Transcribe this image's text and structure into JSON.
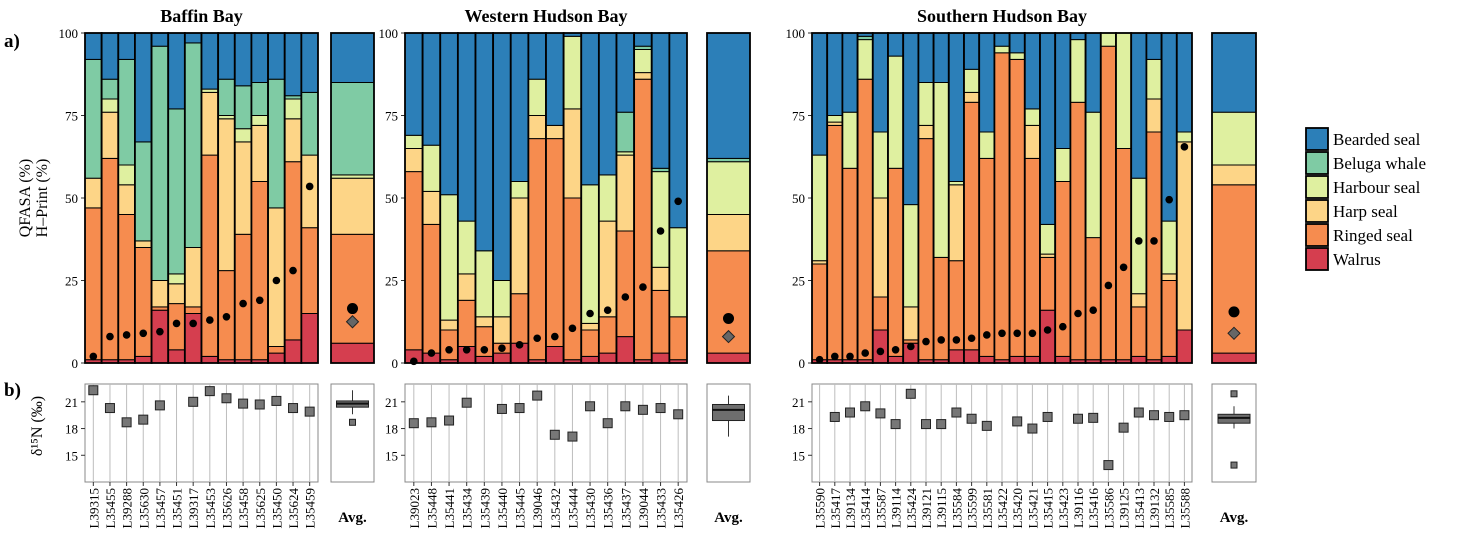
{
  "panel_labels": {
    "a": "a)",
    "b": "b)"
  },
  "y_label_a": {
    "line1": "QFASA (%)",
    "line2": "H–Print (%)"
  },
  "y_label_b": "δ¹⁵N (‰)",
  "avg_label": "Avg.",
  "colors": {
    "Bearded seal": "#2c7fb8",
    "Beluga whale": "#7fcba4",
    "Harbour seal": "#dff0a0",
    "Harp seal": "#fdd587",
    "Ringed seal": "#f68c4f",
    "Walrus": "#d53e4f",
    "dot": "#000000",
    "diamond": "#666666",
    "box": "#6e6e6e"
  },
  "legend": {
    "entries": [
      "Bearded seal",
      "Beluga whale",
      "Harbour seal",
      "Harp seal",
      "Ringed seal",
      "Walrus"
    ]
  },
  "chart_data": [
    {
      "type": "bar",
      "region": "Baffin Bay",
      "title": "Baffin Bay",
      "stacking": "stacked 100%",
      "ylim": [
        0,
        100
      ],
      "yticks": [
        0,
        25,
        50,
        75,
        100
      ],
      "stack_order_bottom_to_top": [
        "Walrus",
        "Ringed seal",
        "Harp seal",
        "Harbour seal",
        "Beluga whale",
        "Bearded seal"
      ],
      "categories": [
        "L39315",
        "L35455",
        "L39288",
        "L35630",
        "L35457",
        "L35451",
        "L39317",
        "L35453",
        "L35626",
        "L35458",
        "L35625",
        "L35450",
        "L35624",
        "L35459"
      ],
      "series": [
        {
          "name": "Walrus",
          "values": [
            1,
            1,
            1,
            2,
            16,
            4,
            15,
            2,
            1,
            1,
            1,
            3,
            7,
            15
          ]
        },
        {
          "name": "Ringed seal",
          "values": [
            46,
            61,
            44,
            33,
            1,
            14,
            2,
            61,
            27,
            38,
            54,
            2,
            54,
            26
          ]
        },
        {
          "name": "Harp seal",
          "values": [
            9,
            14,
            9,
            2,
            8,
            6,
            18,
            19,
            46,
            28,
            17,
            42,
            13,
            22
          ]
        },
        {
          "name": "Harbour seal",
          "values": [
            0,
            4,
            6,
            0,
            0,
            3,
            0,
            1,
            1,
            4,
            3,
            0,
            6,
            0
          ]
        },
        {
          "name": "Beluga whale",
          "values": [
            36,
            6,
            32,
            30,
            71,
            50,
            62,
            0,
            11,
            13,
            10,
            39,
            1,
            19
          ]
        },
        {
          "name": "Bearded seal",
          "values": [
            8,
            14,
            8,
            33,
            4,
            23,
            3,
            17,
            14,
            16,
            15,
            14,
            19,
            18
          ]
        }
      ],
      "hprint_points": {
        "name": "H-Print",
        "values": [
          2,
          8,
          8.5,
          9,
          9.5,
          12,
          12,
          13,
          14,
          18,
          19,
          25,
          28,
          53.5
        ]
      },
      "d15n": {
        "ylim": [
          12,
          23
        ],
        "yticks": [
          15,
          18,
          21
        ],
        "values": [
          22.3,
          20.3,
          18.7,
          19.0,
          20.6,
          null,
          21.0,
          22.2,
          21.4,
          20.8,
          20.7,
          21.1,
          20.3,
          19.9
        ]
      },
      "average": {
        "label": "Avg.",
        "stack": {
          "Walrus": 6,
          "Ringed seal": 33,
          "Harp seal": 17,
          "Harbour seal": 1,
          "Beluga whale": 28,
          "Bearded seal": 15
        },
        "hprint_mean": 16.5,
        "qfasa_mean": 12.5,
        "box": {
          "min": 19.6,
          "q1": 20.4,
          "median": 20.8,
          "q3": 21.1,
          "max": 22.3,
          "outliers": [
            18.7
          ]
        }
      }
    },
    {
      "type": "bar",
      "region": "Western Hudson Bay",
      "title": "Western Hudson Bay",
      "stacking": "stacked 100%",
      "ylim": [
        0,
        100
      ],
      "yticks": [
        0,
        25,
        50,
        75,
        100
      ],
      "stack_order_bottom_to_top": [
        "Walrus",
        "Ringed seal",
        "Harp seal",
        "Harbour seal",
        "Beluga whale",
        "Bearded seal"
      ],
      "categories": [
        "L39023",
        "L35448",
        "L35441",
        "L35434",
        "L35439",
        "L35440",
        "L35445",
        "L39046",
        "L35432",
        "L35444",
        "L35430",
        "L35436",
        "L35437",
        "L39044",
        "L35433",
        "L35426"
      ],
      "series": [
        {
          "name": "Walrus",
          "values": [
            4,
            3,
            1,
            5,
            2,
            3,
            6,
            1,
            5,
            1,
            2,
            3,
            8,
            1,
            3,
            1
          ]
        },
        {
          "name": "Ringed seal",
          "values": [
            54,
            39,
            9,
            14,
            9,
            3,
            15,
            67,
            63,
            49,
            8,
            11,
            32,
            85,
            19,
            13
          ]
        },
        {
          "name": "Harp seal",
          "values": [
            7,
            10,
            3,
            8,
            3,
            8,
            29,
            7,
            4,
            27,
            2,
            29,
            23,
            2,
            7,
            0
          ]
        },
        {
          "name": "Harbour seal",
          "values": [
            4,
            14,
            38,
            16,
            20,
            11,
            5,
            11,
            0,
            22,
            42,
            14,
            1,
            7,
            29,
            27
          ]
        },
        {
          "name": "Beluga whale",
          "values": [
            0,
            0,
            0,
            0,
            0,
            0,
            0,
            0,
            0,
            0,
            0,
            0,
            12,
            1,
            1,
            0
          ]
        },
        {
          "name": "Bearded seal",
          "values": [
            31,
            34,
            49,
            57,
            66,
            75,
            45,
            14,
            28,
            1,
            46,
            43,
            24,
            4,
            41,
            59
          ]
        }
      ],
      "hprint_points": {
        "name": "H-Print",
        "values": [
          0.5,
          3,
          4,
          4,
          4,
          4.5,
          5.5,
          7.5,
          8,
          10.5,
          15,
          16,
          20,
          23,
          40,
          49
        ]
      },
      "d15n": {
        "ylim": [
          12,
          23
        ],
        "yticks": [
          15,
          18,
          21
        ],
        "values": [
          18.6,
          18.7,
          18.9,
          20.9,
          null,
          20.2,
          20.3,
          21.7,
          17.3,
          17.1,
          20.5,
          18.6,
          20.5,
          20.1,
          20.3,
          19.6
        ]
      },
      "average": {
        "label": "Avg.",
        "stack": {
          "Walrus": 3,
          "Ringed seal": 31,
          "Harp seal": 11,
          "Harbour seal": 16,
          "Beluga whale": 1,
          "Bearded seal": 38
        },
        "hprint_mean": 13.5,
        "qfasa_mean": 8,
        "box": {
          "min": 17.1,
          "q1": 18.9,
          "median": 20.1,
          "q3": 20.7,
          "max": 21.7,
          "outliers": []
        }
      }
    },
    {
      "type": "bar",
      "region": "Southern Hudson Bay",
      "title": "Southern Hudson Bay",
      "stacking": "stacked 100%",
      "ylim": [
        0,
        100
      ],
      "yticks": [
        0,
        25,
        50,
        75,
        100
      ],
      "stack_order_bottom_to_top": [
        "Walrus",
        "Ringed seal",
        "Harp seal",
        "Harbour seal",
        "Beluga whale",
        "Bearded seal"
      ],
      "categories": [
        "L35590",
        "L35417",
        "L39134",
        "L35414",
        "L35587",
        "L39114",
        "L35424",
        "L39121",
        "L39115",
        "L35584",
        "L35599",
        "L35581",
        "L35422",
        "L35420",
        "L35421",
        "L35415",
        "L35423",
        "L39116",
        "L35416",
        "L35586",
        "L39125",
        "L35413",
        "L39132",
        "L35585",
        "L35588"
      ],
      "series": [
        {
          "name": "Walrus",
          "values": [
            1,
            1,
            1,
            1,
            10,
            2,
            6,
            1,
            1,
            4,
            4,
            2,
            1,
            2,
            2,
            16,
            2,
            1,
            1,
            1,
            1,
            2,
            1,
            2,
            10
          ]
        },
        {
          "name": "Ringed seal",
          "values": [
            29,
            71,
            58,
            85,
            10,
            57,
            1,
            67,
            31,
            27,
            75,
            60,
            93,
            90,
            60,
            16,
            53,
            78,
            37,
            95,
            64,
            15,
            69,
            23,
            0
          ]
        },
        {
          "name": "Harp seal",
          "values": [
            1,
            1,
            0,
            0,
            30,
            0,
            10,
            4,
            0,
            23,
            3,
            0,
            0,
            0,
            10,
            1,
            0,
            0,
            0,
            0,
            0,
            4,
            10,
            2,
            57
          ]
        },
        {
          "name": "Harbour seal",
          "values": [
            32,
            2,
            17,
            12,
            20,
            34,
            31,
            13,
            53,
            1,
            7,
            8,
            2,
            2,
            5,
            9,
            10,
            19,
            38,
            4,
            35,
            35,
            12,
            16,
            3
          ]
        },
        {
          "name": "Beluga whale",
          "values": [
            0,
            0,
            0,
            1,
            0,
            0,
            0,
            0,
            0,
            0,
            0,
            0,
            0,
            0,
            0,
            0,
            0,
            0,
            0,
            0,
            0,
            0,
            0,
            0,
            0
          ]
        },
        {
          "name": "Bearded seal",
          "values": [
            37,
            25,
            24,
            1,
            30,
            7,
            52,
            15,
            15,
            45,
            11,
            30,
            4,
            6,
            23,
            58,
            35,
            2,
            24,
            0,
            0,
            44,
            8,
            57,
            30
          ]
        }
      ],
      "hprint_points": {
        "name": "H-Print",
        "values": [
          1,
          2,
          2,
          3,
          3.5,
          4,
          5,
          6.5,
          7,
          7,
          7.5,
          8.5,
          9,
          9,
          9,
          10,
          11,
          15,
          16,
          23.5,
          29,
          37,
          37,
          49.5,
          65.5
        ]
      },
      "d15n": {
        "ylim": [
          12,
          23
        ],
        "yticks": [
          15,
          18,
          21
        ],
        "values": [
          null,
          19.3,
          19.8,
          20.5,
          19.7,
          18.5,
          21.9,
          18.5,
          18.5,
          19.8,
          19.1,
          18.3,
          null,
          18.8,
          18.0,
          19.3,
          null,
          19.1,
          19.2,
          13.9,
          18.1,
          19.8,
          19.5,
          19.3,
          19.5
        ]
      },
      "average": {
        "label": "Avg.",
        "stack": {
          "Walrus": 3,
          "Ringed seal": 51,
          "Harp seal": 6,
          "Harbour seal": 16,
          "Beluga whale": 0,
          "Bearded seal": 24
        },
        "hprint_mean": 15.5,
        "qfasa_mean": 9,
        "box": {
          "min": 18.0,
          "q1": 18.6,
          "median": 19.2,
          "q3": 19.6,
          "max": 20.5,
          "outliers": [
            21.9,
            13.9
          ]
        }
      }
    }
  ]
}
